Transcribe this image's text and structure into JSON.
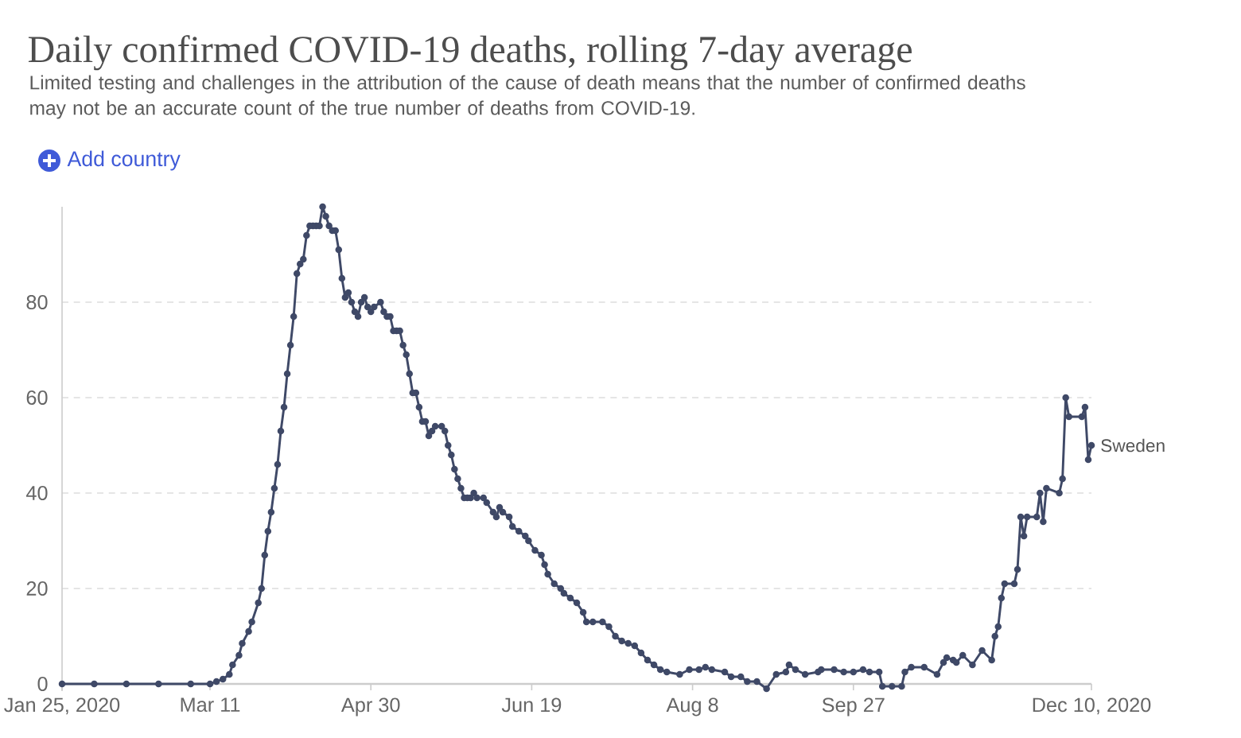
{
  "chart_data": {
    "type": "line",
    "title": "Daily confirmed COVID-19 deaths, rolling 7-day average",
    "subtitle": "Limited testing and challenges in the attribution of the cause of death means that the number of confirmed deaths may not be an accurate count of the true number of deaths from COVID-19.",
    "annotations": [
      "Add country"
    ],
    "x": [
      "2020-01-25",
      "2020-02-04",
      "2020-02-14",
      "2020-02-24",
      "2020-03-05",
      "2020-03-11",
      "2020-03-13",
      "2020-03-15",
      "2020-03-17",
      "2020-03-18",
      "2020-03-20",
      "2020-03-21",
      "2020-03-23",
      "2020-03-24",
      "2020-03-26",
      "2020-03-27",
      "2020-03-28",
      "2020-03-29",
      "2020-03-30",
      "2020-03-31",
      "2020-04-01",
      "2020-04-02",
      "2020-04-03",
      "2020-04-04",
      "2020-04-05",
      "2020-04-06",
      "2020-04-07",
      "2020-04-08",
      "2020-04-09",
      "2020-04-10",
      "2020-04-11",
      "2020-04-12",
      "2020-04-13",
      "2020-04-14",
      "2020-04-15",
      "2020-04-16",
      "2020-04-17",
      "2020-04-18",
      "2020-04-19",
      "2020-04-20",
      "2020-04-21",
      "2020-04-22",
      "2020-04-23",
      "2020-04-24",
      "2020-04-25",
      "2020-04-26",
      "2020-04-27",
      "2020-04-28",
      "2020-04-29",
      "2020-04-30",
      "2020-05-01",
      "2020-05-03",
      "2020-05-04",
      "2020-05-05",
      "2020-05-06",
      "2020-05-07",
      "2020-05-08",
      "2020-05-09",
      "2020-05-10",
      "2020-05-11",
      "2020-05-12",
      "2020-05-13",
      "2020-05-14",
      "2020-05-15",
      "2020-05-16",
      "2020-05-17",
      "2020-05-18",
      "2020-05-19",
      "2020-05-20",
      "2020-05-22",
      "2020-05-23",
      "2020-05-24",
      "2020-05-25",
      "2020-05-26",
      "2020-05-27",
      "2020-05-28",
      "2020-05-29",
      "2020-05-30",
      "2020-05-31",
      "2020-06-01",
      "2020-06-02",
      "2020-06-04",
      "2020-06-05",
      "2020-06-07",
      "2020-06-08",
      "2020-06-09",
      "2020-06-10",
      "2020-06-12",
      "2020-06-13",
      "2020-06-15",
      "2020-06-17",
      "2020-06-18",
      "2020-06-20",
      "2020-06-22",
      "2020-06-23",
      "2020-06-24",
      "2020-06-26",
      "2020-06-28",
      "2020-06-29",
      "2020-07-01",
      "2020-07-03",
      "2020-07-05",
      "2020-07-06",
      "2020-07-08",
      "2020-07-11",
      "2020-07-13",
      "2020-07-15",
      "2020-07-17",
      "2020-07-19",
      "2020-07-21",
      "2020-07-23",
      "2020-07-25",
      "2020-07-27",
      "2020-07-29",
      "2020-07-31",
      "2020-08-04",
      "2020-08-07",
      "2020-08-10",
      "2020-08-12",
      "2020-08-14",
      "2020-08-18",
      "2020-08-20",
      "2020-08-23",
      "2020-08-25",
      "2020-08-28",
      "2020-08-31",
      "2020-09-03",
      "2020-09-06",
      "2020-09-07",
      "2020-09-09",
      "2020-09-12",
      "2020-09-16",
      "2020-09-17",
      "2020-09-21",
      "2020-09-24",
      "2020-09-27",
      "2020-09-30",
      "2020-10-02",
      "2020-10-05",
      "2020-10-06",
      "2020-10-09",
      "2020-10-12",
      "2020-10-13",
      "2020-10-15",
      "2020-10-19",
      "2020-10-23",
      "2020-10-25",
      "2020-10-26",
      "2020-10-28",
      "2020-10-29",
      "2020-10-31",
      "2020-11-03",
      "2020-11-06",
      "2020-11-09",
      "2020-11-10",
      "2020-11-11",
      "2020-11-12",
      "2020-11-13",
      "2020-11-16",
      "2020-11-17",
      "2020-11-18",
      "2020-11-19",
      "2020-11-20",
      "2020-11-23",
      "2020-11-24",
      "2020-11-25",
      "2020-11-26",
      "2020-11-30",
      "2020-12-01",
      "2020-12-02",
      "2020-12-03",
      "2020-12-07",
      "2020-12-08",
      "2020-12-09",
      "2020-12-10"
    ],
    "series": [
      {
        "name": "Sweden",
        "color": "#3f4967",
        "values": [
          0,
          0,
          0,
          0,
          0,
          0,
          0.5,
          1,
          2,
          4,
          6,
          8.5,
          11,
          13,
          17,
          20,
          27,
          32,
          36,
          41,
          46,
          53,
          58,
          65,
          71,
          77,
          86,
          88,
          89,
          94,
          96,
          96,
          96,
          96,
          100,
          98,
          96,
          95,
          95,
          91,
          85,
          81,
          82,
          80,
          78,
          77,
          80,
          81,
          79,
          78,
          79,
          80,
          78,
          77,
          77,
          74,
          74,
          74,
          71,
          69,
          65,
          61,
          61,
          58,
          55,
          55,
          52,
          53,
          54,
          54,
          53,
          50,
          48,
          45,
          43,
          41,
          39,
          39,
          39,
          40,
          39,
          39,
          38,
          36,
          35,
          37,
          36,
          35,
          33,
          32,
          31,
          30,
          28,
          27,
          25,
          23,
          21,
          20,
          19,
          18,
          17,
          15,
          13,
          13,
          13,
          12,
          10,
          9,
          8.5,
          8,
          6.5,
          5,
          4,
          3,
          2.5,
          2,
          3,
          3,
          3.5,
          3,
          2.5,
          1.5,
          1.5,
          0.5,
          0.5,
          -1,
          2,
          2.5,
          4,
          3,
          2,
          2.5,
          3,
          3,
          2.5,
          2.5,
          3,
          2.5,
          2.5,
          -0.5,
          -0.5,
          -0.5,
          2.5,
          3.5,
          3.5,
          2,
          4.5,
          5.5,
          5,
          4.5,
          6,
          4,
          7,
          5,
          10,
          12,
          18,
          21,
          21,
          24,
          35,
          31,
          35,
          35,
          40,
          34,
          41,
          40,
          43,
          60,
          56,
          56,
          58,
          47,
          50
        ]
      }
    ],
    "xlim": [
      "2020-01-25",
      "2020-12-10"
    ],
    "ylim": [
      -1.5,
      100
    ],
    "xticks": [
      {
        "value": "2020-01-25",
        "label": "Jan 25, 2020"
      },
      {
        "value": "2020-03-11",
        "label": "Mar 11"
      },
      {
        "value": "2020-04-30",
        "label": "Apr 30"
      },
      {
        "value": "2020-06-19",
        "label": "Jun 19"
      },
      {
        "value": "2020-08-08",
        "label": "Aug 8"
      },
      {
        "value": "2020-09-27",
        "label": "Sep 27"
      },
      {
        "value": "2020-12-10",
        "label": "Dec 10, 2020"
      }
    ],
    "yticks": [
      0,
      20,
      40,
      60,
      80
    ],
    "grid": "y",
    "marker": "circle"
  }
}
